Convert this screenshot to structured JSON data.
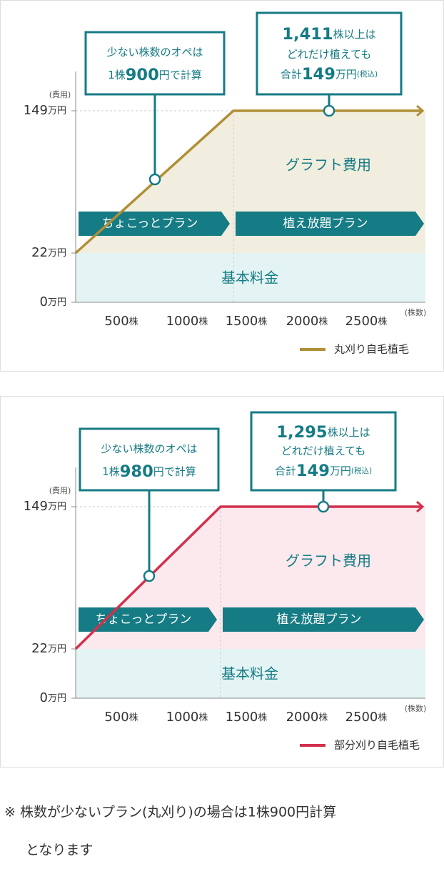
{
  "panels": [
    {
      "callout_left": [
        [
          "少ない株数のオペは"
        ],
        [
          "1株",
          "900",
          "円で計算"
        ]
      ],
      "callout_right": [
        [
          "1,411",
          "株以上は"
        ],
        [
          "どれだけ植えても"
        ],
        [
          "合計",
          "149",
          "万円",
          "(税込)"
        ]
      ],
      "plan_left": "ちょこっとプラン",
      "plan_right": "植え放題プラン",
      "graft_label": "グラフト費用",
      "base_label": "基本料金",
      "y_unit": "(費用)",
      "y_labels": [
        [
          "149",
          "万円"
        ],
        [
          "22",
          "万円"
        ],
        [
          "0",
          "万円"
        ]
      ],
      "x_labels": [
        [
          "500",
          "株"
        ],
        [
          "1000",
          "株"
        ],
        [
          "1500",
          "株"
        ],
        [
          "2000",
          "株"
        ],
        [
          "2500",
          "株"
        ]
      ],
      "x_unit": "(株数)",
      "legend": "丸刈り自毛植毛",
      "color": "#b08f36",
      "fill": "#f2eedf"
    },
    {
      "callout_left": [
        [
          "少ない株数のオペは"
        ],
        [
          "1株",
          "980",
          "円で計算"
        ]
      ],
      "callout_right": [
        [
          "1,295",
          "株以上は"
        ],
        [
          "どれだけ植えても"
        ],
        [
          "合計",
          "149",
          "万円",
          "(税込)"
        ]
      ],
      "plan_left": "ちょこっとプラン",
      "plan_right": "植え放題プラン",
      "graft_label": "グラフト費用",
      "base_label": "基本料金",
      "y_unit": "(費用)",
      "y_labels": [
        [
          "149",
          "万円"
        ],
        [
          "22",
          "万円"
        ],
        [
          "0",
          "万円"
        ]
      ],
      "x_labels": [
        [
          "500",
          "株"
        ],
        [
          "1000",
          "株"
        ],
        [
          "1500",
          "株"
        ],
        [
          "2000",
          "株"
        ],
        [
          "2500",
          "株"
        ]
      ],
      "x_unit": "(株数)",
      "legend": "部分刈り自毛植毛",
      "color": "#d42f4c",
      "fill": "#fbe9ed"
    }
  ],
  "footnote": [
    "※ 株数が少ないプラン(丸刈り)の場合は1株900円計算",
    "となります"
  ]
}
